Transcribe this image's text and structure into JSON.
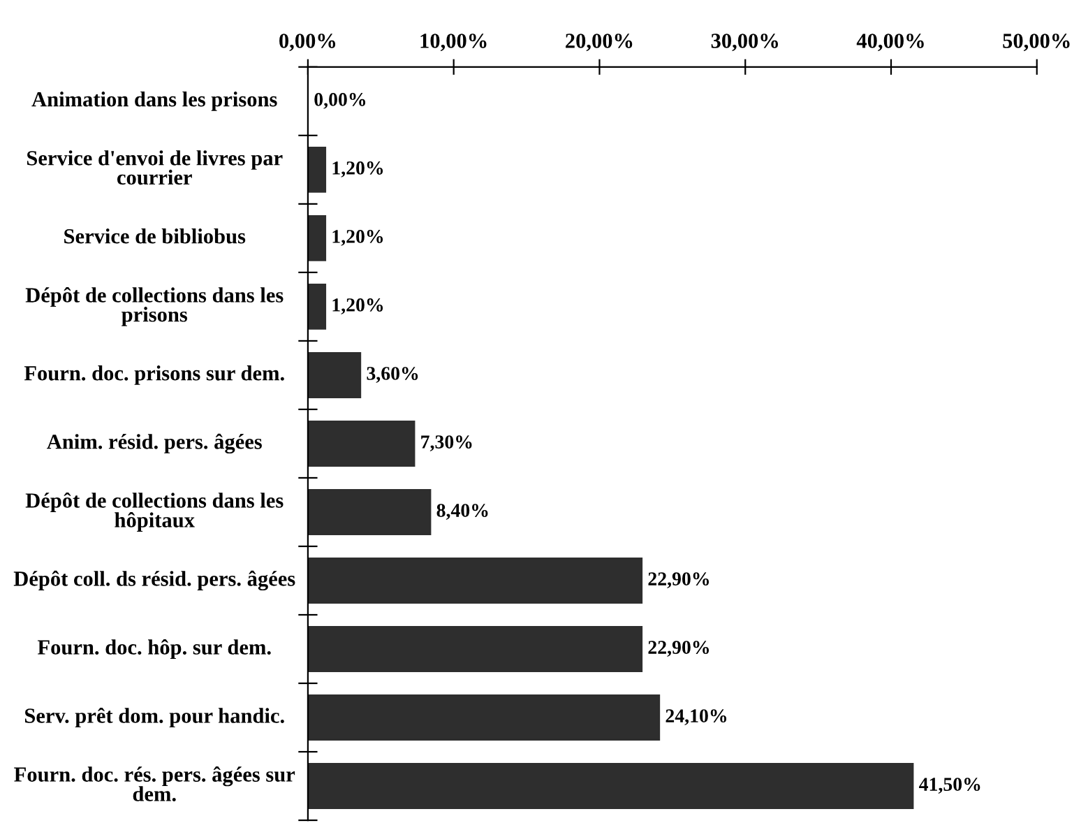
{
  "chart_data": {
    "type": "bar",
    "orientation": "horizontal",
    "categories": [
      "Animation dans les prisons",
      "Service d'envoi de livres par courrier",
      "Service de bibliobus",
      "Dépôt de collections dans les prisons",
      "Fourn. doc. prisons sur dem.",
      "Anim. résid. pers. âgées",
      "Dépôt de collections dans les hôpitaux",
      "Dépôt coll. ds résid. pers. âgées",
      "Fourn. doc. hôp. sur dem.",
      "Serv. prêt dom. pour handic.",
      "Fourn. doc. rés. pers. âgées sur dem."
    ],
    "values": [
      0,
      1.2,
      1.2,
      1.2,
      3.6,
      7.3,
      8.4,
      22.9,
      22.9,
      24.1,
      41.5
    ],
    "value_labels": [
      "0,00%",
      "1,20%",
      "1,20%",
      "1,20%",
      "3,60%",
      "7,30%",
      "8,40%",
      "22,90%",
      "22,90%",
      "24,10%",
      "41,50%"
    ],
    "color": "#2e2e2e",
    "xlim": [
      0,
      50
    ],
    "xticks": [
      {
        "value": 0,
        "label": "0,00%"
      },
      {
        "value": 10,
        "label": "10,00%"
      },
      {
        "value": 20,
        "label": "20,00%"
      },
      {
        "value": 30,
        "label": "30,00%"
      },
      {
        "value": 40,
        "label": "40,00%"
      },
      {
        "value": 50,
        "label": "50,00%"
      }
    ],
    "grid": false,
    "legend": false
  }
}
